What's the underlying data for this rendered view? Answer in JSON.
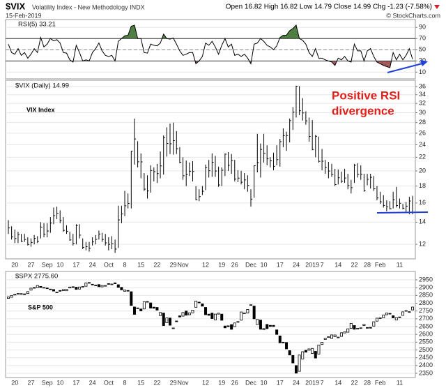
{
  "header": {
    "symbol": "$VIX",
    "name": "Volatility Index - New Methodology INDX",
    "date": "15-Feb-2019",
    "quote": "Open 16.82 High 16.82 Low 14.79 Close 14.99 Chg -1.23 (-7.58%)",
    "credit": "© StockCharts.com"
  },
  "chart_data": {
    "type": "stock",
    "categories": [
      null,
      null,
      "20",
      null,
      null,
      null,
      null,
      "27",
      null,
      null,
      null,
      null,
      "Sep",
      null,
      null,
      null,
      "10",
      null,
      null,
      null,
      null,
      "17",
      null,
      null,
      null,
      null,
      "24",
      null,
      null,
      null,
      null,
      "Oct",
      null,
      null,
      null,
      null,
      "8",
      null,
      null,
      null,
      null,
      "15",
      null,
      null,
      null,
      null,
      "22",
      null,
      null,
      null,
      null,
      "29",
      null,
      null,
      "Nov",
      null,
      null,
      null,
      null,
      null,
      null,
      "12",
      null,
      null,
      null,
      null,
      "19",
      null,
      null,
      null,
      "26",
      null,
      null,
      null,
      null,
      "Dec",
      null,
      null,
      null,
      "10",
      null,
      null,
      null,
      null,
      "17",
      null,
      null,
      null,
      null,
      "24",
      null,
      null,
      null,
      null,
      "2019",
      null,
      null,
      "7",
      null,
      null,
      null,
      null,
      "14",
      null,
      null,
      null,
      null,
      "22",
      null,
      null,
      null,
      "28",
      null,
      null,
      null,
      "Feb",
      null,
      null,
      null,
      null,
      null,
      "11",
      null,
      null,
      null,
      null
    ],
    "panels": [
      {
        "type": "line",
        "label": "RSI(5) 33.21",
        "color": "#000000",
        "fill_above": "#4f7f42",
        "fill_below": "#a35a5c",
        "ylim": [
          -2,
          104
        ],
        "yticks": [
          10,
          30,
          50,
          70,
          90
        ],
        "levels": [
          70,
          50,
          30
        ],
        "grid": true,
        "values": [
          60,
          45,
          42,
          52,
          40,
          45,
          35,
          42,
          52,
          45,
          72,
          55,
          60,
          70,
          66,
          68,
          62,
          45,
          44,
          32,
          28,
          58,
          45,
          30,
          32,
          30,
          45,
          52,
          62,
          48,
          40,
          38,
          40,
          30,
          65,
          70,
          75,
          76,
          92,
          94,
          70,
          70,
          45,
          44,
          60,
          58,
          57,
          62,
          78,
          70,
          69,
          71,
          60,
          48,
          40,
          42,
          45,
          45,
          25,
          30,
          38,
          62,
          58,
          65,
          55,
          42,
          58,
          70,
          55,
          60,
          40,
          42,
          38,
          42,
          35,
          25,
          60,
          62,
          70,
          65,
          58,
          55,
          50,
          57,
          72,
          76,
          76,
          84,
          88,
          94,
          70,
          67,
          60,
          45,
          38,
          52,
          35,
          35,
          32,
          30,
          28,
          22,
          35,
          32,
          38,
          30,
          28,
          60,
          48,
          48,
          30,
          48,
          52,
          38,
          28,
          25,
          22,
          20,
          18,
          45,
          32,
          42,
          32,
          40,
          52,
          33.21
        ]
      },
      {
        "type": "ohlc",
        "label": "$VIX (Daily) 14.99",
        "note": "VIX Index",
        "annotation": [
          "Positive RSI",
          "divergence"
        ],
        "color": "#000000",
        "log": true,
        "grid": true,
        "ylim": [
          10.84,
          37.6
        ],
        "yticks": [
          12,
          14,
          16,
          18,
          20,
          22,
          24,
          26,
          28,
          30,
          32,
          34,
          36
        ],
        "high": [
          14.2,
          13.6,
          13.3,
          13.1,
          12.9,
          12.9,
          12.6,
          12.5,
          12.8,
          12.7,
          14.0,
          13.9,
          13.9,
          14.5,
          15.5,
          15.6,
          15.2,
          14.5,
          13.7,
          13.1,
          12.9,
          13.8,
          13.8,
          12.5,
          12.2,
          12.2,
          12.6,
          12.8,
          13.2,
          13.0,
          12.9,
          12.6,
          12.7,
          12.4,
          15.7,
          15.7,
          17.4,
          17.1,
          23.0,
          28.8,
          24.6,
          22.6,
          19.7,
          19.4,
          20.8,
          20.5,
          21.0,
          22.9,
          25.6,
          27.1,
          27.8,
          28.0,
          26.4,
          23.6,
          22.0,
          21.5,
          21.2,
          21.4,
          18.0,
          17.6,
          18.0,
          20.9,
          21.6,
          22.6,
          22.2,
          20.6,
          20.5,
          22.6,
          22.8,
          22.5,
          21.6,
          20.1,
          20.0,
          19.7,
          19.4,
          17.6,
          20.8,
          25.9,
          24.2,
          25.9,
          23.9,
          22.0,
          22.7,
          23.9,
          25.0,
          26.9,
          26.3,
          28.8,
          31.2,
          36.2,
          36.1,
          33.2,
          30.3,
          29.0,
          28.5,
          25.7,
          25.4,
          23.3,
          21.6,
          21.3,
          21.0,
          20.3,
          20.2,
          19.9,
          20.3,
          19.6,
          18.8,
          21.0,
          21.1,
          20.8,
          19.6,
          19.6,
          19.6,
          19.3,
          18.0,
          17.3,
          16.9,
          16.3,
          16.2,
          17.3,
          17.9,
          16.5,
          15.9,
          16.1,
          16.7,
          16.82
        ],
        "low": [
          12.9,
          12.4,
          12.1,
          12.1,
          12.2,
          12.2,
          11.9,
          11.8,
          12.0,
          12.1,
          12.5,
          12.6,
          12.6,
          13.0,
          13.8,
          14.3,
          13.9,
          13.1,
          12.9,
          12.3,
          11.9,
          12.0,
          12.5,
          11.6,
          11.5,
          11.4,
          11.9,
          12.0,
          12.4,
          12.2,
          11.9,
          11.5,
          11.6,
          11.3,
          11.7,
          13.9,
          14.6,
          15.4,
          15.4,
          20.9,
          20.5,
          19.0,
          17.4,
          16.5,
          17.2,
          18.6,
          18.4,
          19.0,
          19.5,
          22.1,
          22.5,
          22.4,
          22.5,
          21.1,
          18.8,
          18.0,
          19.3,
          18.6,
          16.3,
          16.2,
          16.9,
          17.5,
          19.1,
          19.2,
          19.2,
          17.9,
          18.0,
          19.3,
          20.0,
          19.6,
          18.6,
          18.5,
          18.2,
          17.6,
          17.3,
          15.6,
          16.6,
          19.8,
          19.1,
          21.2,
          20.8,
          20.5,
          20.1,
          20.8,
          20.6,
          23.6,
          23.0,
          24.4,
          26.6,
          29.0,
          29.5,
          28.4,
          27.6,
          24.5,
          23.1,
          22.0,
          21.2,
          20.1,
          19.6,
          19.0,
          19.2,
          18.0,
          18.2,
          18.4,
          18.4,
          17.6,
          17.1,
          18.4,
          19.1,
          18.8,
          17.3,
          18.1,
          17.7,
          17.4,
          16.3,
          15.9,
          15.5,
          15.1,
          15.3,
          15.4,
          15.5,
          15.4,
          15.3,
          14.9,
          14.8,
          14.79
        ],
        "close": [
          13.45,
          12.64,
          12.49,
          12.86,
          12.25,
          12.41,
          11.99,
          12.16,
          12.5,
          12.25,
          13.53,
          12.86,
          13.16,
          13.91,
          14.65,
          14.88,
          14.16,
          13.22,
          13.14,
          12.37,
          12.07,
          13.68,
          12.79,
          11.75,
          11.8,
          11.68,
          12.2,
          12.42,
          12.89,
          12.41,
          12.12,
          12.0,
          12.05,
          11.61,
          14.22,
          14.82,
          15.69,
          15.95,
          22.96,
          24.98,
          21.31,
          21.3,
          17.62,
          17.4,
          20.06,
          19.89,
          19.64,
          20.71,
          25.23,
          24.22,
          24.16,
          24.7,
          23.35,
          21.23,
          19.34,
          19.51,
          19.96,
          19.91,
          16.36,
          16.72,
          17.36,
          20.45,
          20.02,
          21.25,
          19.98,
          18.14,
          20.1,
          22.48,
          20.8,
          21.52,
          18.9,
          19.02,
          18.49,
          18.79,
          18.07,
          16.44,
          20.74,
          21.19,
          23.23,
          22.64,
          21.76,
          21.46,
          20.65,
          21.63,
          24.52,
          25.58,
          25.58,
          28.38,
          30.11,
          36.07,
          30.41,
          29.96,
          28.34,
          25.42,
          23.22,
          25.45,
          21.38,
          21.4,
          20.47,
          19.98,
          19.5,
          18.19,
          19.07,
          18.6,
          19.04,
          18.06,
          17.8,
          20.8,
          19.52,
          19.52,
          17.42,
          18.87,
          19.13,
          17.66,
          16.57,
          16.14,
          15.73,
          15.57,
          15.38,
          16.37,
          15.72,
          15.97,
          15.43,
          15.65,
          16.22,
          14.99
        ]
      },
      {
        "type": "candlestick",
        "label": "$SPX 2775.60",
        "note": "S&P 500",
        "up_color": "#ffffff",
        "down_color": "#000000",
        "grid": true,
        "ylim": [
          2323,
          3004
        ],
        "yticks": [
          2350,
          2400,
          2450,
          2500,
          2550,
          2600,
          2650,
          2700,
          2750,
          2800,
          2850,
          2900,
          2950
        ],
        "open": [
          2831,
          2838,
          2853,
          2859,
          2860,
          2860,
          2862,
          2884,
          2901,
          2900,
          2908,
          2899,
          2898,
          2891,
          2888,
          2868,
          2882,
          2881,
          2880,
          2898,
          2906,
          2903,
          2891,
          2906,
          2909,
          2933,
          2922,
          2917,
          2920,
          2905,
          2910,
          2926,
          2923,
          2931,
          2919,
          2902,
          2877,
          2882,
          2874,
          2776,
          2770,
          2763,
          2763,
          2811,
          2802,
          2775,
          2773,
          2721,
          2737,
          2675,
          2705,
          2640,
          2686,
          2719,
          2717,
          2750,
          2726,
          2738,
          2774,
          2807,
          2796,
          2773,
          2730,
          2737,
          2693,
          2730,
          2730,
          2654,
          2655,
          2663,
          2650,
          2678,
          2691,
          2736,
          2737,
          2790,
          2782,
          2663,
          2692,
          2630,
          2664,
          2658,
          2658,
          2629,
          2590,
          2550,
          2548,
          2496,
          2465,
          2400,
          2363,
          2442,
          2498,
          2498,
          2477,
          2491,
          2474,
          2535,
          2568,
          2580,
          2574,
          2585,
          2581,
          2587,
          2609,
          2614,
          2638,
          2657,
          2638,
          2639,
          2657,
          2644,
          2645,
          2653,
          2685,
          2702,
          2707,
          2726,
          2735,
          2720,
          2692,
          2712,
          2722,
          2751,
          2743,
          2757
        ],
        "close": [
          2840.7,
          2850.1,
          2857.1,
          2862.9,
          2861.8,
          2856.9,
          2874.7,
          2896.7,
          2897.5,
          2914.0,
          2901.1,
          2901.5,
          2896.7,
          2888.6,
          2878.1,
          2871.7,
          2877.1,
          2887.9,
          2888.9,
          2904.2,
          2904.9,
          2888.8,
          2904.3,
          2907.9,
          2930.8,
          2929.7,
          2919.4,
          2915.6,
          2905.9,
          2914.0,
          2913.98,
          2924.6,
          2923.4,
          2925.5,
          2901.6,
          2885.6,
          2884.4,
          2880.3,
          2785.7,
          2728.4,
          2767.1,
          2750.8,
          2809.9,
          2809.2,
          2768.8,
          2767.8,
          2755.9,
          2740.7,
          2656.1,
          2705.6,
          2658.7,
          2641.3,
          2682.6,
          2711.7,
          2740.4,
          2723.1,
          2738.3,
          2755.5,
          2813.9,
          2806.8,
          2781.0,
          2726.2,
          2722.2,
          2701.6,
          2730.2,
          2736.3,
          2690.7,
          2641.9,
          2649.9,
          2632.6,
          2673.5,
          2682.2,
          2743.8,
          2737.8,
          2760.2,
          2790.4,
          2700.1,
          2695.9,
          2633.1,
          2637.7,
          2636.8,
          2651.1,
          2650.5,
          2599.9,
          2545.9,
          2546.2,
          2506.9,
          2467.4,
          2416.6,
          2351.1,
          2467.7,
          2488.8,
          2485.7,
          2506.9,
          2510.0,
          2447.9,
          2531.9,
          2549.7,
          2574.4,
          2584.96,
          2596.6,
          2596.3,
          2582.6,
          2610.3,
          2616.1,
          2635.96,
          2670.7,
          2632.9,
          2638.7,
          2642.3,
          2664.8,
          2643.9,
          2640.0,
          2681.1,
          2704.1,
          2706.5,
          2724.9,
          2737.7,
          2731.6,
          2706.05,
          2707.9,
          2709.8,
          2744.7,
          2753.0,
          2745.7,
          2775.6
        ]
      }
    ]
  }
}
